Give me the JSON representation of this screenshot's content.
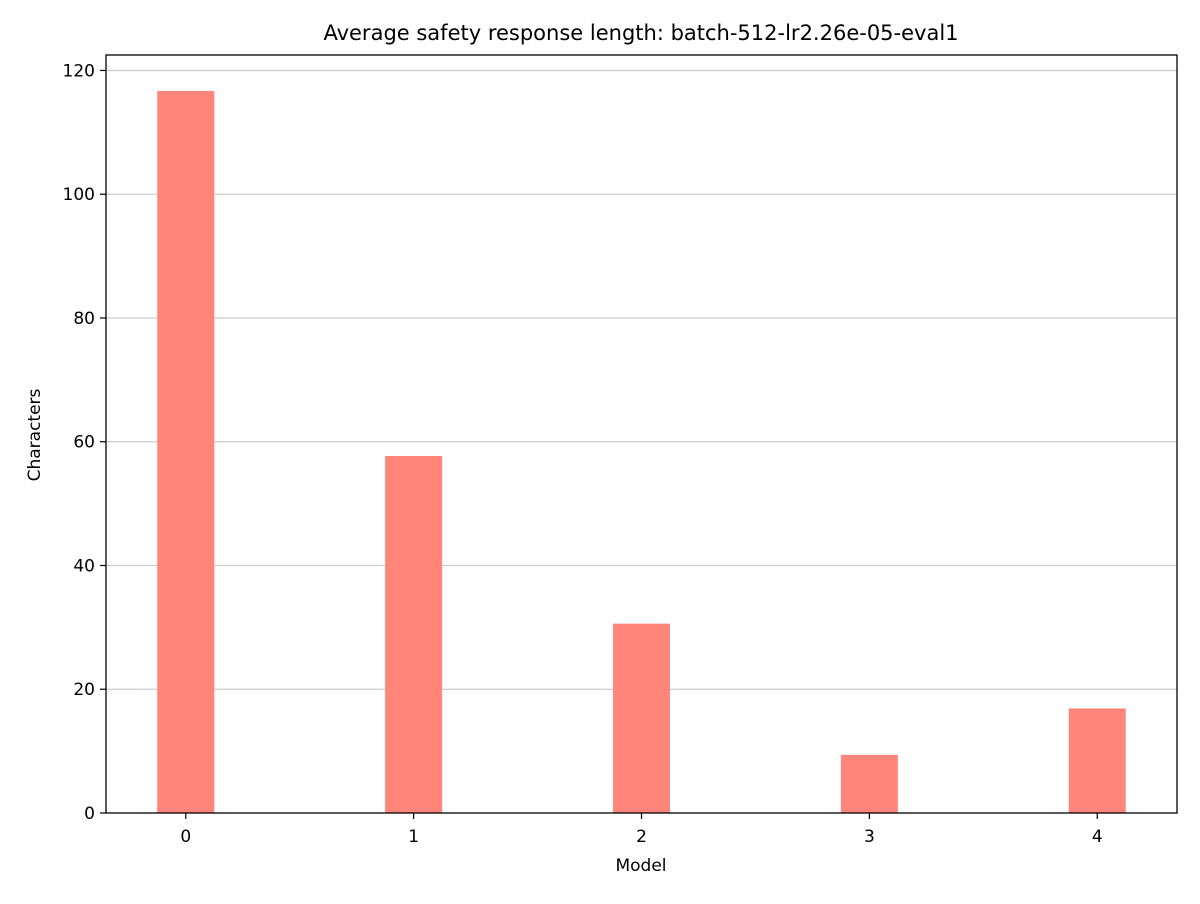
{
  "chart_data": {
    "type": "bar",
    "title": "Average safety response length: batch-512-lr2.26e-05-eval1",
    "xlabel": "Model",
    "ylabel": "Characters",
    "categories": [
      "0",
      "1",
      "2",
      "3",
      "4"
    ],
    "x_values": [
      0,
      1,
      2,
      3,
      4
    ],
    "values": [
      116.7,
      57.7,
      30.6,
      9.4,
      16.9
    ],
    "xlim": [
      -0.35,
      4.35
    ],
    "ylim": [
      0,
      122.5
    ],
    "yticks": [
      0,
      20,
      40,
      60,
      80,
      100,
      120
    ],
    "ytick_labels": [
      "0",
      "20",
      "40",
      "60",
      "80",
      "100",
      "120"
    ],
    "grid": "y",
    "legend": "none",
    "bar_color": "#ff8479",
    "grid_color": "#cccccc",
    "axis_color": "#000000"
  }
}
